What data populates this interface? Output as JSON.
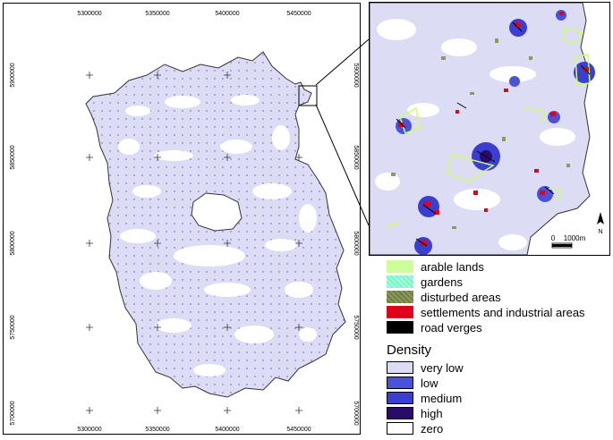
{
  "main_map": {
    "x_ticks": [
      "5300000",
      "5350000",
      "5400000",
      "5450000"
    ],
    "y_ticks": [
      "5900000",
      "5850000",
      "5800000",
      "5750000",
      "5700000"
    ]
  },
  "inset": {
    "scale_zero": "0",
    "scale_label": "1000m",
    "north_label": "N"
  },
  "legend_landuse": [
    {
      "label": "arable lands",
      "color": "#ccff99"
    },
    {
      "label": "gardens",
      "color": "#66ffcc"
    },
    {
      "label": "disturbed areas",
      "color": "#8c9a5a"
    },
    {
      "label": "settlements and industrial areas",
      "color": "#e0001a"
    },
    {
      "label": "road verges",
      "color": "#000000"
    }
  ],
  "legend_density": {
    "title": "Density",
    "items": [
      {
        "label": "very low",
        "color": "#dcdcf5"
      },
      {
        "label": "low",
        "color": "#4a52d9"
      },
      {
        "label": "medium",
        "color": "#3a3fd0"
      },
      {
        "label": "high",
        "color": "#2a0a6b"
      },
      {
        "label": "zero",
        "color": "#ffffff"
      }
    ]
  }
}
